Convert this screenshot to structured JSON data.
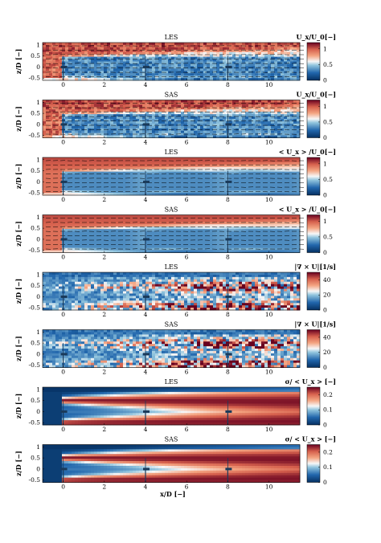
{
  "figure": {
    "xlabel": "x/D [−]",
    "ylabel": "z/D [−]"
  },
  "chart_data": [
    {
      "type": "heatmap",
      "title": "LES",
      "colorbar_title": "U_x/U_0[−]",
      "field": "velocity",
      "xlim": [
        -1,
        11.5
      ],
      "ylim": [
        -0.6,
        1.1
      ],
      "xticks": [
        "0",
        "2",
        "4",
        "6",
        "8",
        "10"
      ],
      "yticks": [
        "1",
        "0.5",
        "0",
        "-0.5"
      ],
      "cbticks": [
        "1",
        "0.5",
        "0"
      ],
      "cbrange": [
        0,
        1.2
      ],
      "quiver": true,
      "turbines_x": [
        0,
        4,
        8
      ]
    },
    {
      "type": "heatmap",
      "title": "SAS",
      "colorbar_title": "U_x/U_0[−]",
      "field": "velocity",
      "xlim": [
        -1,
        11.5
      ],
      "ylim": [
        -0.6,
        1.1
      ],
      "xticks": [
        "0",
        "2",
        "4",
        "6",
        "8",
        "10"
      ],
      "yticks": [
        "1",
        "0.5",
        "0",
        "-0.5"
      ],
      "cbticks": [
        "1",
        "0.5",
        "0"
      ],
      "cbrange": [
        0,
        1.2
      ],
      "quiver": true,
      "turbines_x": [
        0,
        4,
        8
      ]
    },
    {
      "type": "heatmap",
      "title": "LES",
      "colorbar_title": "< U_x > /U_0[−]",
      "field": "mean",
      "xlim": [
        -1,
        11.5
      ],
      "ylim": [
        -0.6,
        1.1
      ],
      "xticks": [
        "0",
        "2",
        "4",
        "6",
        "8",
        "10"
      ],
      "yticks": [
        "1",
        "0.5",
        "0",
        "-0.5"
      ],
      "cbticks": [
        "1",
        "0.5",
        "0"
      ],
      "cbrange": [
        0,
        1.2
      ],
      "quiver": true,
      "turbines_x": [
        0,
        4,
        8
      ]
    },
    {
      "type": "heatmap",
      "title": "SAS",
      "colorbar_title": "< U_x > /U_0[−]",
      "field": "mean",
      "xlim": [
        -1,
        11.5
      ],
      "ylim": [
        -0.6,
        1.1
      ],
      "xticks": [
        "0",
        "2",
        "4",
        "6",
        "8",
        "10"
      ],
      "yticks": [
        "1",
        "0.5",
        "0",
        "-0.5"
      ],
      "cbticks": [
        "1",
        "0.5",
        "0"
      ],
      "cbrange": [
        0,
        1.2
      ],
      "quiver": true,
      "turbines_x": [
        0,
        4,
        8
      ]
    },
    {
      "type": "heatmap",
      "title": "LES",
      "colorbar_title": "|∇ × U|[1/s]",
      "field": "vorticity",
      "xlim": [
        -1,
        11.5
      ],
      "ylim": [
        -0.6,
        1.1
      ],
      "xticks": [
        "0",
        "2",
        "4",
        "6",
        "8",
        "10"
      ],
      "yticks": [
        "1",
        "0.5",
        "0",
        "-0.5"
      ],
      "cbticks": [
        "40",
        "20",
        "0"
      ],
      "cbrange": [
        0,
        50
      ],
      "quiver": false,
      "turbines_x": [
        0,
        4,
        8
      ]
    },
    {
      "type": "heatmap",
      "title": "SAS",
      "colorbar_title": "|∇ × U|[1/s]",
      "field": "vorticity",
      "xlim": [
        -1,
        11.5
      ],
      "ylim": [
        -0.6,
        1.1
      ],
      "xticks": [
        "0",
        "2",
        "4",
        "6",
        "8",
        "10"
      ],
      "yticks": [
        "1",
        "0.5",
        "0",
        "-0.5"
      ],
      "cbticks": [
        "40",
        "20",
        "0"
      ],
      "cbrange": [
        0,
        50
      ],
      "quiver": false,
      "turbines_x": [
        0,
        4,
        8
      ]
    },
    {
      "type": "heatmap",
      "title": "LES",
      "colorbar_title": "σ/ < U_x > [−]",
      "field": "sigma",
      "xlim": [
        -1,
        11.5
      ],
      "ylim": [
        -0.6,
        1.1
      ],
      "xticks": [
        "0",
        "2",
        "4",
        "6",
        "8",
        "10"
      ],
      "yticks": [
        "1",
        "0.5",
        "0",
        "-0.5"
      ],
      "cbticks": [
        "0.2",
        "0.1",
        "0"
      ],
      "cbrange": [
        0,
        0.25
      ],
      "quiver": false,
      "turbines_x": [
        0,
        4,
        8
      ]
    },
    {
      "type": "heatmap",
      "title": "SAS",
      "colorbar_title": "σ/ < U_x > [−]",
      "field": "sigma",
      "xlim": [
        -1,
        11.5
      ],
      "ylim": [
        -0.6,
        1.1
      ],
      "xticks": [
        "0",
        "2",
        "4",
        "6",
        "8",
        "10"
      ],
      "yticks": [
        "1",
        "0.5",
        "0",
        "-0.5"
      ],
      "cbticks": [
        "0.2",
        "0.1",
        "0"
      ],
      "cbrange": [
        0,
        0.25
      ],
      "quiver": false,
      "turbines_x": [
        0,
        4,
        8
      ]
    }
  ]
}
